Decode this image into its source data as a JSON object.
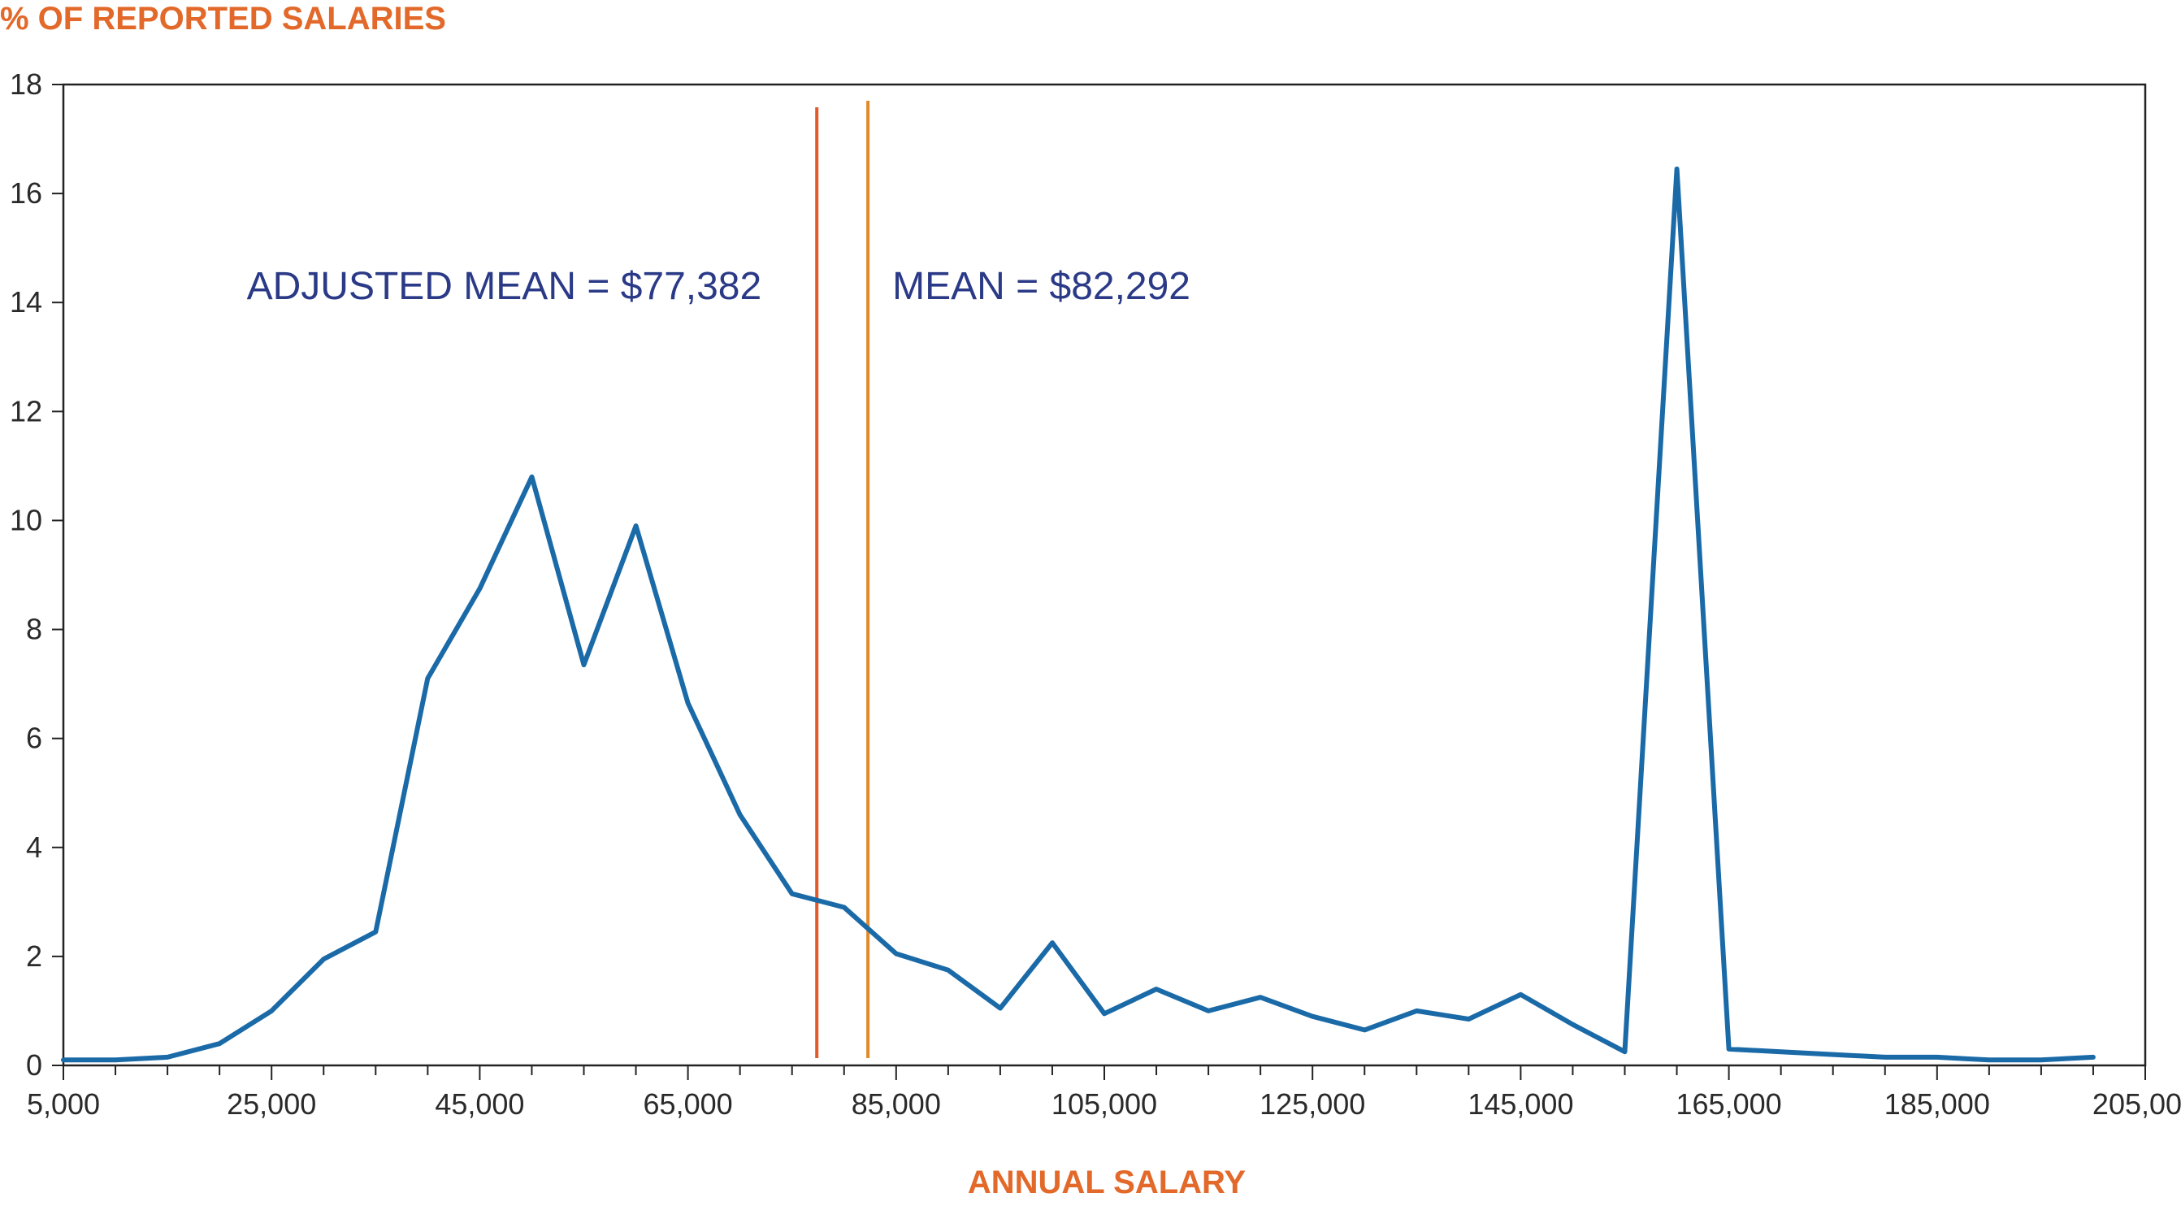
{
  "chart_data": {
    "type": "line",
    "ylabel": "% OF REPORTED SALARIES",
    "xlabel": "ANNUAL SALARY",
    "xlim": [
      5000,
      205000
    ],
    "ylim": [
      0,
      18
    ],
    "x_ticks": [
      5000,
      25000,
      45000,
      65000,
      85000,
      105000,
      125000,
      145000,
      165000,
      185000,
      205000
    ],
    "x_tick_labels": [
      "5,000",
      "25,000",
      "45,000",
      "65,000",
      "85,000",
      "105,000",
      "125,000",
      "145,000",
      "165,000",
      "185,000",
      "205,000"
    ],
    "x_minor_step": 5000,
    "y_ticks": [
      0,
      2,
      4,
      6,
      8,
      10,
      12,
      14,
      16,
      18
    ],
    "y_tick_labels": [
      "0",
      "2",
      "4",
      "6",
      "8",
      "10",
      "12",
      "14",
      "16",
      "18"
    ],
    "grid": false,
    "series": [
      {
        "color": "#1b6aa8",
        "x": [
          5000,
          10000,
          15000,
          20000,
          25000,
          30000,
          35000,
          40000,
          45000,
          50000,
          55000,
          60000,
          65000,
          70000,
          75000,
          80000,
          85000,
          90000,
          95000,
          100000,
          105000,
          110000,
          115000,
          120000,
          125000,
          130000,
          135000,
          140000,
          145000,
          150000,
          155000,
          160000,
          165000,
          170000,
          175000,
          180000,
          185000,
          190000,
          195000,
          200000
        ],
        "values": [
          0.1,
          0.1,
          0.15,
          0.4,
          1.0,
          1.95,
          2.45,
          7.1,
          8.75,
          10.8,
          7.35,
          9.9,
          6.65,
          4.6,
          3.15,
          2.9,
          2.05,
          1.75,
          1.05,
          2.25,
          0.95,
          1.4,
          1.0,
          1.25,
          0.9,
          0.65,
          1.0,
          0.85,
          1.3,
          0.75,
          0.25,
          16.45,
          0.3,
          0.25,
          0.2,
          0.15,
          0.15,
          0.1,
          0.1,
          0.15
        ]
      }
    ],
    "reference_lines": [
      {
        "x": 77382,
        "label": "ADJUSTED MEAN = $77,382",
        "color": "#e2592a",
        "label_side": "left"
      },
      {
        "x": 82292,
        "label": "MEAN = $82,292",
        "color": "#e08a2a",
        "label_side": "right"
      }
    ]
  }
}
